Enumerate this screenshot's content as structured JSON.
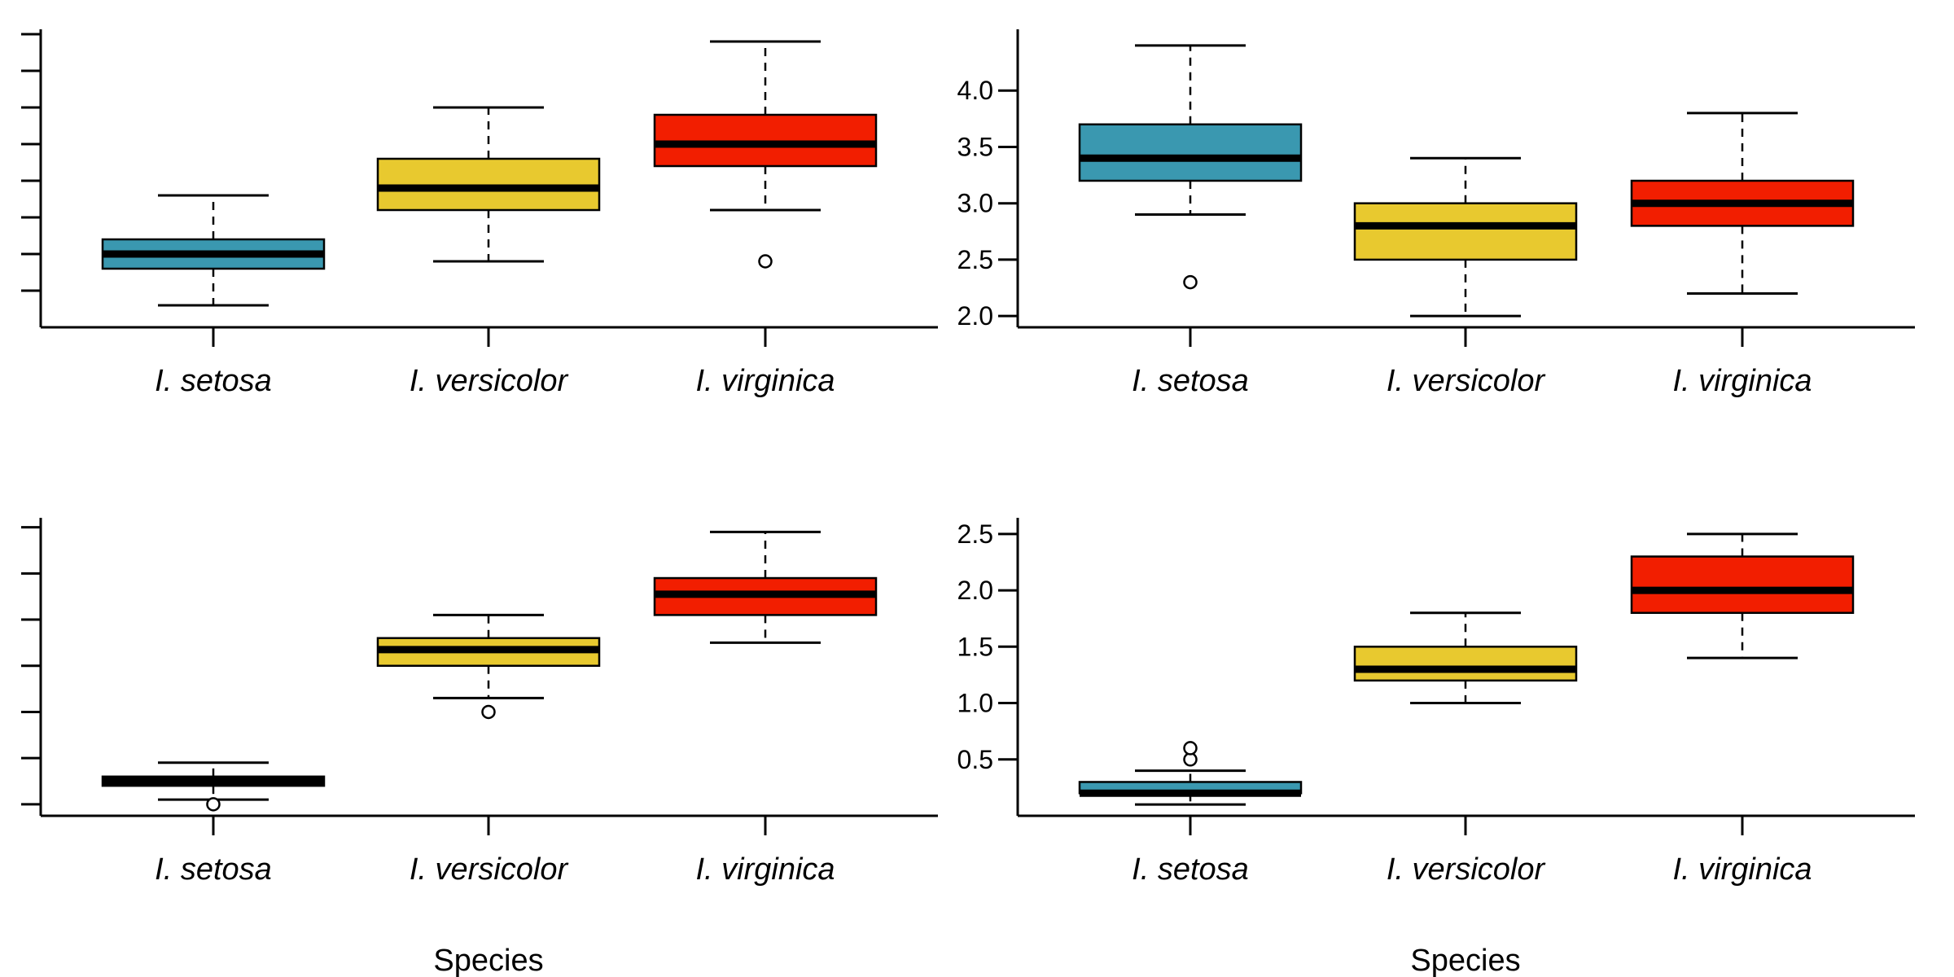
{
  "colors": {
    "I. setosa": "#3a98b0",
    "I. versicolor": "#e8c92f",
    "I. virginica": "#f21e00"
  },
  "chart_data": [
    {
      "type": "box",
      "position": "top-left",
      "categories": [
        "I. setosa",
        "I. versicolor",
        "I. virginica"
      ],
      "xlabel": "",
      "ylabel": "",
      "ylim": [
        4.0,
        8.0
      ],
      "y_ticks": [
        4.5,
        5.0,
        5.5,
        6.0,
        6.5,
        7.0,
        7.5,
        8.0
      ],
      "y_tick_labels": [],
      "boxes": [
        {
          "category": "I. setosa",
          "whisker_low": 4.3,
          "q1": 4.8,
          "median": 5.0,
          "q3": 5.2,
          "whisker_high": 5.8,
          "outliers": []
        },
        {
          "category": "I. versicolor",
          "whisker_low": 4.9,
          "q1": 5.6,
          "median": 5.9,
          "q3": 6.3,
          "whisker_high": 7.0,
          "outliers": []
        },
        {
          "category": "I. virginica",
          "whisker_low": 5.6,
          "q1": 6.2,
          "median": 6.5,
          "q3": 6.9,
          "whisker_high": 7.9,
          "outliers": [
            4.9
          ]
        }
      ]
    },
    {
      "type": "box",
      "position": "top-right",
      "categories": [
        "I. setosa",
        "I. versicolor",
        "I. virginica"
      ],
      "xlabel": "",
      "ylabel": "",
      "ylim": [
        1.9,
        4.5
      ],
      "y_ticks": [
        2.0,
        2.5,
        3.0,
        3.5,
        4.0
      ],
      "y_tick_labels": [
        "2.0",
        "2.5",
        "3.0",
        "3.5",
        "4.0"
      ],
      "boxes": [
        {
          "category": "I. setosa",
          "whisker_low": 2.9,
          "q1": 3.2,
          "median": 3.4,
          "q3": 3.7,
          "whisker_high": 4.4,
          "outliers": [
            2.3
          ]
        },
        {
          "category": "I. versicolor",
          "whisker_low": 2.0,
          "q1": 2.5,
          "median": 2.8,
          "q3": 3.0,
          "whisker_high": 3.4,
          "outliers": []
        },
        {
          "category": "I. virginica",
          "whisker_low": 2.2,
          "q1": 2.8,
          "median": 3.0,
          "q3": 3.2,
          "whisker_high": 3.8,
          "outliers": []
        }
      ]
    },
    {
      "type": "box",
      "position": "bottom-left",
      "categories": [
        "I. setosa",
        "I. versicolor",
        "I. virginica"
      ],
      "xlabel": "Species",
      "ylabel": "",
      "ylim": [
        0.75,
        7.1
      ],
      "y_ticks": [
        1,
        2,
        3,
        4,
        5,
        6,
        7
      ],
      "y_tick_labels": [],
      "boxes": [
        {
          "category": "I. setosa",
          "whisker_low": 1.1,
          "q1": 1.4,
          "median": 1.5,
          "q3": 1.6,
          "whisker_high": 1.9,
          "outliers": [
            1.0
          ]
        },
        {
          "category": "I. versicolor",
          "whisker_low": 3.3,
          "q1": 4.0,
          "median": 4.35,
          "q3": 4.6,
          "whisker_high": 5.1,
          "outliers": [
            3.0
          ]
        },
        {
          "category": "I. virginica",
          "whisker_low": 4.5,
          "q1": 5.1,
          "median": 5.55,
          "q3": 5.9,
          "whisker_high": 6.9,
          "outliers": []
        }
      ]
    },
    {
      "type": "box",
      "position": "bottom-right",
      "categories": [
        "I. setosa",
        "I. versicolor",
        "I. virginica"
      ],
      "xlabel": "Species",
      "ylabel": "",
      "ylim": [
        0.0,
        2.6
      ],
      "y_ticks": [
        0.5,
        1.0,
        1.5,
        2.0,
        2.5
      ],
      "y_tick_labels": [
        "0.5",
        "1.0",
        "1.5",
        "2.0",
        "2.5"
      ],
      "boxes": [
        {
          "category": "I. setosa",
          "whisker_low": 0.1,
          "q1": 0.2,
          "median": 0.2,
          "q3": 0.3,
          "whisker_high": 0.4,
          "outliers": [
            0.5,
            0.6
          ]
        },
        {
          "category": "I. versicolor",
          "whisker_low": 1.0,
          "q1": 1.2,
          "median": 1.3,
          "q3": 1.5,
          "whisker_high": 1.8,
          "outliers": []
        },
        {
          "category": "I. virginica",
          "whisker_low": 1.4,
          "q1": 1.8,
          "median": 2.0,
          "q3": 2.3,
          "whisker_high": 2.5,
          "outliers": []
        }
      ]
    }
  ]
}
